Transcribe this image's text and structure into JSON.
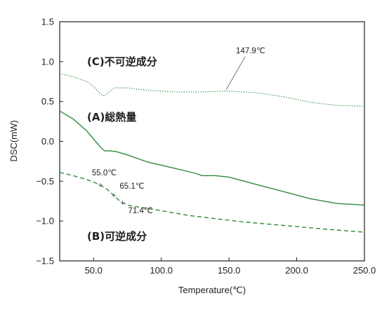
{
  "chart_data": {
    "type": "line",
    "xlabel": "Temperature(℃)",
    "ylabel": "DSC(mW)",
    "xlim": [
      25,
      250
    ],
    "ylim": [
      -1.5,
      1.5
    ],
    "xticks": [
      50,
      100,
      150,
      200,
      250
    ],
    "xtick_labels": [
      "50.0",
      "100.0",
      "150.0",
      "200.0",
      "250.0"
    ],
    "yticks": [
      -1.5,
      -1.0,
      -0.5,
      0.0,
      0.5,
      1.0,
      1.5
    ],
    "ytick_labels": [
      "−1.5",
      "−1.0",
      "−0.5",
      "0.0",
      "0.5",
      "1.0",
      "1.5"
    ],
    "grid": false,
    "series": [
      {
        "name": "(C)不可逆成分",
        "color": "#2e8b3a",
        "style": "dotted",
        "x": [
          25,
          35,
          45,
          50,
          53,
          55,
          58,
          62,
          66,
          75,
          90,
          110,
          130,
          150,
          170,
          190,
          210,
          230,
          250
        ],
        "y": [
          0.85,
          0.81,
          0.75,
          0.69,
          0.63,
          0.59,
          0.57,
          0.63,
          0.67,
          0.67,
          0.64,
          0.62,
          0.62,
          0.63,
          0.61,
          0.56,
          0.49,
          0.45,
          0.44
        ]
      },
      {
        "name": "(A)総熱量",
        "color": "#2e8b3a",
        "style": "solid",
        "x": [
          25,
          35,
          45,
          50,
          55,
          58,
          62,
          67,
          75,
          90,
          110,
          125,
          130,
          140,
          150,
          170,
          190,
          210,
          230,
          250
        ],
        "y": [
          0.38,
          0.28,
          0.13,
          0.03,
          -0.07,
          -0.12,
          -0.12,
          -0.13,
          -0.17,
          -0.26,
          -0.34,
          -0.4,
          -0.43,
          -0.43,
          -0.45,
          -0.54,
          -0.63,
          -0.72,
          -0.78,
          -0.8
        ]
      },
      {
        "name": "(B)可逆成分",
        "color": "#2e8b3a",
        "style": "dashed",
        "x": [
          25,
          35,
          45,
          50,
          55,
          60,
          65,
          70,
          75,
          85,
          100,
          120,
          140,
          160,
          180,
          200,
          220,
          235,
          250
        ],
        "y": [
          -0.39,
          -0.43,
          -0.48,
          -0.51,
          -0.55,
          -0.6,
          -0.68,
          -0.76,
          -0.8,
          -0.83,
          -0.87,
          -0.93,
          -0.97,
          -1.01,
          -1.04,
          -1.07,
          -1.1,
          -1.12,
          -1.14
        ]
      }
    ],
    "annotations": [
      {
        "text": "147.9℃",
        "x": 147.9,
        "y": 0.63
      },
      {
        "text": "55.0℃",
        "x": 55.0,
        "y": -0.55
      },
      {
        "text": "65.1℃",
        "x": 65.1,
        "y": -0.68
      },
      {
        "text": "71.4℃",
        "x": 71.4,
        "y": -0.77
      }
    ]
  }
}
